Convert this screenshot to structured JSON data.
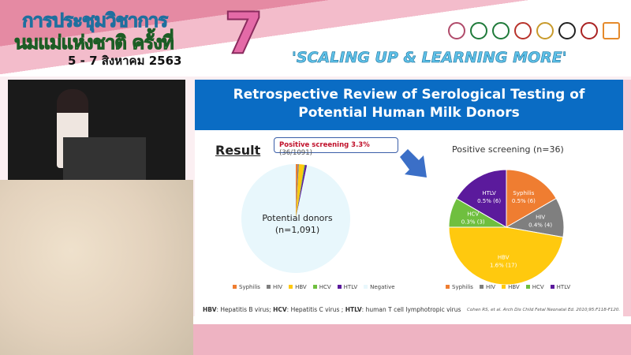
{
  "banner": {
    "thai_line1": "การประชุมวิชาการ",
    "thai_line2": "นมแม่แห่งชาติ ครั้งที่",
    "dates": "5 - 7 สิงหาคม 2563",
    "number": "7",
    "tagline": "'SCALING UP & LEARNING MORE'"
  },
  "slide": {
    "title_line1": "Retrospective Review of Serological Testing of",
    "title_line2": "Potential Human Milk Donors",
    "result_label": "Result",
    "callout_bold": "Positive screening 3.3%",
    "callout_rest": " (36/1091)",
    "left_center_line1": "Potential donors",
    "left_center_line2": "(n=1,091)",
    "right_title": "Positive screening (n=36)",
    "footnote": [
      {
        "abbr": "HBV",
        "text": ": Hepatitis B virus; "
      },
      {
        "abbr": "HCV",
        "text": ": Hepatitis C virus ; "
      },
      {
        "abbr": "HTLV",
        "text": ": human T cell lymphotropic virus"
      }
    ],
    "citation": "Cohen RS, et al. Arch Dis Child Fetal Neonatal Ed. 2010;95:F118-F120."
  },
  "chart_data": [
    {
      "type": "pie",
      "title": "",
      "categories": [
        "Syphilis",
        "HIV",
        "HBV",
        "HCV",
        "HTLV",
        "Negative"
      ],
      "values": [
        6,
        4,
        17,
        3,
        6,
        1055
      ],
      "colors": [
        "#ef7d31",
        "#7f7f7f",
        "#ffc90e",
        "#6fbf3f",
        "#5b1a9c",
        "#e8f7fc"
      ],
      "legend": "bottom"
    },
    {
      "type": "pie",
      "title": "Positive screening (n=36)",
      "categories": [
        "Syphilis",
        "HIV",
        "HBV",
        "HCV",
        "HTLV"
      ],
      "values": [
        6,
        4,
        17,
        3,
        6
      ],
      "labels": [
        "0.5% (6)",
        "0.4% (4)",
        "1.6% (17)",
        "0.3% (3)",
        "0.5% (6)"
      ],
      "colors": [
        "#ef7d31",
        "#7f7f7f",
        "#ffc90e",
        "#6fbf3f",
        "#5b1a9c"
      ],
      "legend": "bottom"
    }
  ]
}
